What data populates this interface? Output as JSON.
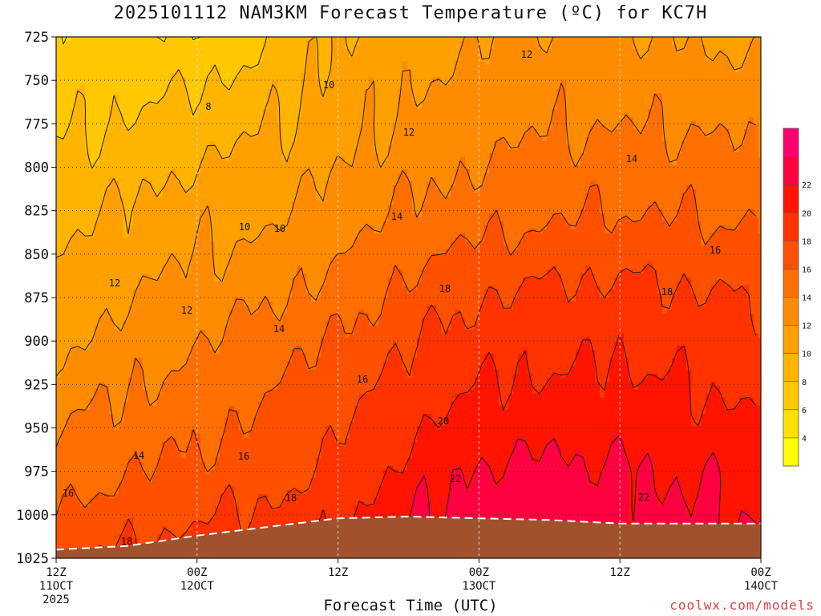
{
  "title": "2025101112 NAM3KM Forecast Temperature (ºC) for KC7H",
  "xlabel": "Forecast Time (UTC)",
  "credit": "coolwx.com/models",
  "colors": {
    "ground": "#a0522d",
    "bands": [
      "#ffff00",
      "#ffe000",
      "#ffc800",
      "#ffb400",
      "#ffa000",
      "#ff8c00",
      "#ff6e00",
      "#ff5000",
      "#ff3200",
      "#ff1400",
      "#ff0040",
      "#ff0070"
    ]
  },
  "chart_data": {
    "type": "heatmap",
    "title": "2025101112 NAM3KM Forecast Temperature (ºC) for KC7H",
    "xlabel": "Forecast Time (UTC)",
    "ylabel": "",
    "y_axis": "pressure (hPa), inverted",
    "ylim": [
      1025,
      725
    ],
    "xlim_hours": [
      0,
      60
    ],
    "yticks": [
      "725",
      "750",
      "775",
      "800",
      "825",
      "850",
      "875",
      "900",
      "925",
      "950",
      "975",
      "1000",
      "1025"
    ],
    "xticks": [
      {
        "line1": "12Z",
        "line2": "11OCT",
        "line3": "2025"
      },
      {
        "line1": "00Z",
        "line2": "12OCT",
        "line3": ""
      },
      {
        "line1": "12Z",
        "line2": "",
        "line3": ""
      },
      {
        "line1": "00Z",
        "line2": "13OCT",
        "line3": ""
      },
      {
        "line1": "12Z",
        "line2": "",
        "line3": ""
      },
      {
        "line1": "00Z",
        "line2": "14OCT",
        "line3": ""
      }
    ],
    "colorbar": {
      "levels": [
        "4",
        "6",
        "8",
        "10",
        "12",
        "14",
        "16",
        "18",
        "20",
        "22"
      ],
      "min": 2,
      "max": 24,
      "step": 2
    },
    "contour_interval": 2,
    "surface_pressure_profile": [
      {
        "hour": 0,
        "p": 1020
      },
      {
        "hour": 6,
        "p": 1018
      },
      {
        "hour": 12,
        "p": 1012
      },
      {
        "hour": 18,
        "p": 1007
      },
      {
        "hour": 24,
        "p": 1002
      },
      {
        "hour": 30,
        "p": 1001
      },
      {
        "hour": 36,
        "p": 1002
      },
      {
        "hour": 42,
        "p": 1003
      },
      {
        "hour": 48,
        "p": 1005
      },
      {
        "hour": 54,
        "p": 1005
      },
      {
        "hour": 60,
        "p": 1005
      }
    ],
    "temperature_by_pressure": [
      {
        "p": 725,
        "t": [
          6.5,
          6.8,
          6.2,
          8.2,
          10.2,
          11.3,
          11.8,
          12.4,
          12.3,
          11.8,
          11.6
        ]
      },
      {
        "p": 775,
        "t": [
          7.5,
          8.2,
          9.0,
          9.8,
          11.0,
          12.5,
          13.2,
          13.8,
          13.9,
          13.8,
          13.5
        ]
      },
      {
        "p": 825,
        "t": [
          9.2,
          10.2,
          11.2,
          11.4,
          12.8,
          14.2,
          15.0,
          15.6,
          16.0,
          15.8,
          15.6
        ]
      },
      {
        "p": 875,
        "t": [
          10.8,
          11.8,
          12.8,
          13.8,
          15.0,
          16.8,
          18.0,
          18.5,
          18.6,
          18.3,
          17.8
        ]
      },
      {
        "p": 925,
        "t": [
          12.8,
          13.8,
          14.8,
          15.8,
          17.2,
          18.6,
          20.0,
          20.3,
          20.5,
          20.0,
          19.4
        ]
      },
      {
        "p": 975,
        "t": [
          15.0,
          15.8,
          16.5,
          17.2,
          18.5,
          20.8,
          22.3,
          22.4,
          22.2,
          21.8,
          21.5
        ]
      },
      {
        "p": 1025,
        "t": [
          17.8,
          18.3,
          19.0,
          19.5,
          20.5,
          22.5,
          23.5,
          23.3,
          23.2,
          22.6,
          22.6
        ]
      }
    ],
    "contour_labels": [
      {
        "text": "8"
      },
      {
        "text": "10"
      },
      {
        "text": "10"
      },
      {
        "text": "10"
      },
      {
        "text": "12"
      },
      {
        "text": "12"
      },
      {
        "text": "12"
      },
      {
        "text": "12"
      },
      {
        "text": "14"
      },
      {
        "text": "14"
      },
      {
        "text": "14"
      },
      {
        "text": "14"
      },
      {
        "text": "16"
      },
      {
        "text": "16"
      },
      {
        "text": "16"
      },
      {
        "text": "16"
      },
      {
        "text": "18"
      },
      {
        "text": "18"
      },
      {
        "text": "18"
      },
      {
        "text": "18"
      },
      {
        "text": "20"
      },
      {
        "text": "22"
      },
      {
        "text": "22"
      }
    ],
    "grid": true,
    "legend": "right colorbar"
  }
}
